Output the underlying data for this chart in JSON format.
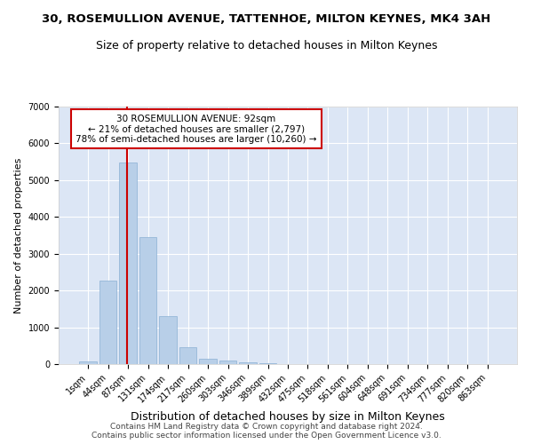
{
  "title1": "30, ROSEMULLION AVENUE, TATTENHOE, MILTON KEYNES, MK4 3AH",
  "title2": "Size of property relative to detached houses in Milton Keynes",
  "xlabel": "Distribution of detached houses by size in Milton Keynes",
  "ylabel": "Number of detached properties",
  "bar_color": "#b8cfe8",
  "bar_edgecolor": "#8ab0d4",
  "background_color": "#dce6f5",
  "grid_color": "#ffffff",
  "annotation_box_color": "#ffffff",
  "annotation_border_color": "#cc0000",
  "vline_color": "#cc0000",
  "categories": [
    "1sqm",
    "44sqm",
    "87sqm",
    "131sqm",
    "174sqm",
    "217sqm",
    "260sqm",
    "303sqm",
    "346sqm",
    "389sqm",
    "432sqm",
    "475sqm",
    "518sqm",
    "561sqm",
    "604sqm",
    "648sqm",
    "691sqm",
    "734sqm",
    "777sqm",
    "820sqm",
    "863sqm"
  ],
  "values": [
    80,
    2270,
    5480,
    3450,
    1300,
    470,
    155,
    90,
    60,
    30,
    0,
    0,
    0,
    0,
    0,
    0,
    0,
    0,
    0,
    0,
    0
  ],
  "ylim": [
    0,
    7000
  ],
  "yticks": [
    0,
    1000,
    2000,
    3000,
    4000,
    5000,
    6000,
    7000
  ],
  "vline_x_index": 1.97,
  "annotation_text_line1": "30 ROSEMULLION AVENUE: 92sqm",
  "annotation_text_line2": "← 21% of detached houses are smaller (2,797)",
  "annotation_text_line3": "78% of semi-detached houses are larger (10,260) →",
  "footer_line1": "Contains HM Land Registry data © Crown copyright and database right 2024.",
  "footer_line2": "Contains public sector information licensed under the Open Government Licence v3.0.",
  "title1_fontsize": 9.5,
  "title2_fontsize": 9,
  "xlabel_fontsize": 9,
  "ylabel_fontsize": 8,
  "tick_fontsize": 7,
  "annotation_fontsize": 7.5,
  "footer_fontsize": 6.5
}
